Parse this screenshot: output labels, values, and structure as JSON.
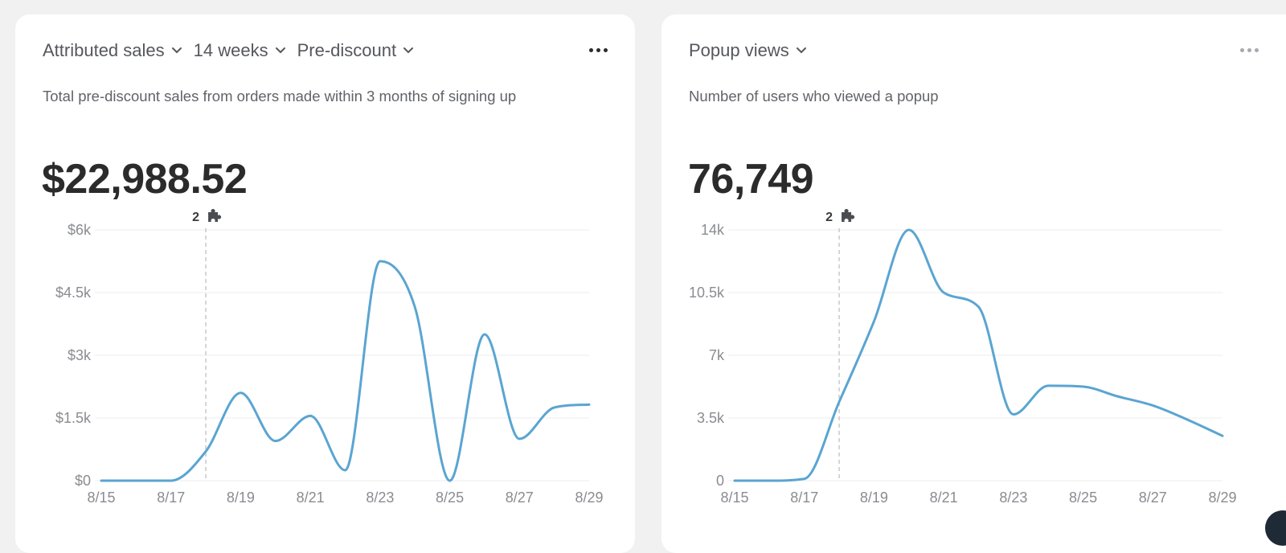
{
  "cards": [
    {
      "controls": [
        {
          "label": "Attributed sales"
        },
        {
          "label": "14 weeks"
        },
        {
          "label": "Pre-discount"
        }
      ],
      "description": "Total pre-discount sales from orders made within 3 months of signing up",
      "metric": "$22,988.52",
      "annotation": {
        "count": "2",
        "icon": "puzzle-icon"
      },
      "menu_icon": "more-horizontal-icon"
    },
    {
      "controls": [
        {
          "label": "Popup views"
        }
      ],
      "description": "Number of users who viewed a popup",
      "metric": "76,749",
      "annotation": {
        "count": "2",
        "icon": "puzzle-icon"
      },
      "menu_icon": "more-horizontal-icon"
    }
  ],
  "colors": {
    "line": "#5aa5d1",
    "accent_text": "#2b2b2b"
  },
  "chart_data": [
    {
      "type": "line",
      "x": [
        "8/15",
        "8/16",
        "8/17",
        "8/18",
        "8/19",
        "8/20",
        "8/21",
        "8/22",
        "8/23",
        "8/24",
        "8/25",
        "8/26",
        "8/27",
        "8/28",
        "8/29"
      ],
      "series": [
        {
          "values": [
            0,
            0,
            0,
            700,
            2100,
            950,
            1550,
            250,
            5250,
            4150,
            0,
            3500,
            1000,
            1750,
            1820
          ]
        }
      ],
      "yticks": [
        "$0",
        "$1.5k",
        "$3k",
        "$4.5k",
        "$6k"
      ],
      "ytick_values": [
        0,
        1500,
        3000,
        4500,
        6000
      ],
      "xticks": [
        "8/15",
        "8/17",
        "8/19",
        "8/21",
        "8/23",
        "8/25",
        "8/27",
        "8/29"
      ],
      "ylim": [
        0,
        6000
      ],
      "grid": true,
      "annotation_x": "8/18"
    },
    {
      "type": "line",
      "x": [
        "8/15",
        "8/16",
        "8/17",
        "8/18",
        "8/19",
        "8/20",
        "8/21",
        "8/22",
        "8/23",
        "8/24",
        "8/25",
        "8/26",
        "8/27",
        "8/28",
        "8/29"
      ],
      "series": [
        {
          "values": [
            0,
            0,
            100,
            4400,
            8900,
            14000,
            10500,
            9700,
            3700,
            5300,
            5250,
            4700,
            4200,
            3400,
            2500
          ]
        }
      ],
      "yticks": [
        "0",
        "3.5k",
        "7k",
        "10.5k",
        "14k"
      ],
      "ytick_values": [
        0,
        3500,
        7000,
        10500,
        14000
      ],
      "xticks": [
        "8/15",
        "8/17",
        "8/19",
        "8/21",
        "8/23",
        "8/25",
        "8/27",
        "8/29"
      ],
      "ylim": [
        0,
        14000
      ],
      "grid": true,
      "annotation_x": "8/18"
    }
  ]
}
